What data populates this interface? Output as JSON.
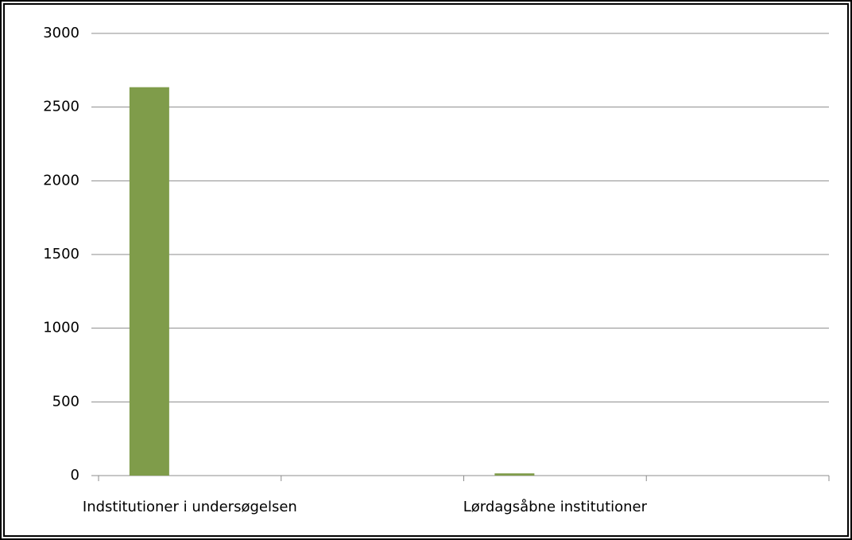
{
  "chart_data": {
    "type": "bar",
    "categories": [
      "Indstitutioner i undersøgelsen",
      null,
      "Lørdagsåbne institutioner",
      null
    ],
    "values": [
      2635,
      null,
      15,
      null
    ],
    "color": "#7f9c4a",
    "ylim": [
      0,
      3000
    ],
    "yticks": [
      0,
      500,
      1000,
      1500,
      2000,
      2500,
      3000
    ],
    "grid": true
  }
}
